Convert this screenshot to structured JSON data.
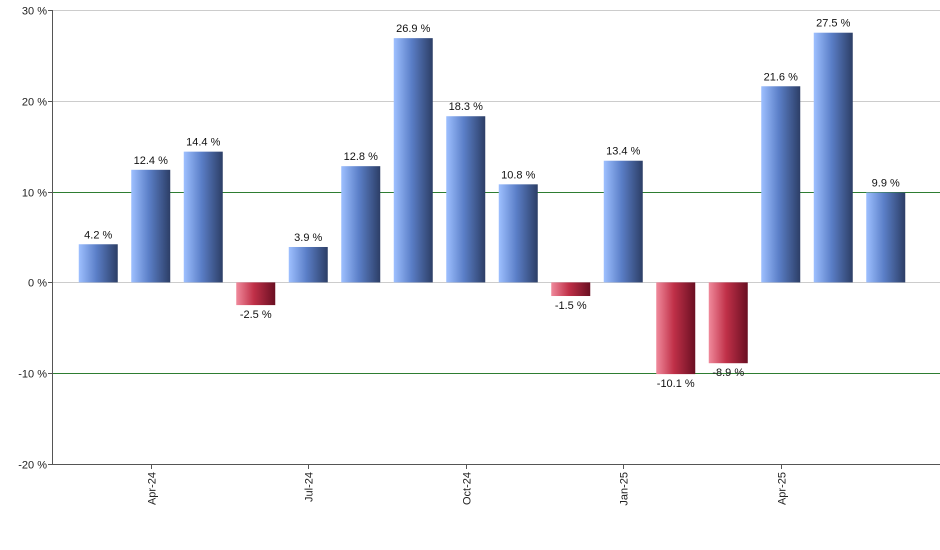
{
  "chart_data": {
    "type": "bar",
    "title": "",
    "xlabel": "",
    "ylabel": "",
    "ylim": [
      -20,
      30
    ],
    "y_ticks": [
      -20,
      -10,
      0,
      10,
      20,
      30
    ],
    "y_tick_labels": [
      "-20 %",
      "-10 %",
      "0 %",
      "10 %",
      "20 %",
      "30 %"
    ],
    "reference_lines": [
      10,
      -10
    ],
    "grid": true,
    "x_tick_labels": [
      "Apr-24",
      "Jul-24",
      "Oct-24",
      "Jan-25",
      "Apr-25"
    ],
    "x_tick_positions": [
      1,
      4,
      7,
      10,
      13
    ],
    "values": [
      4.2,
      12.4,
      14.4,
      -2.5,
      3.9,
      12.8,
      26.9,
      18.3,
      10.8,
      -1.5,
      13.4,
      -10.1,
      -8.9,
      21.6,
      27.5,
      9.9
    ],
    "value_labels": [
      "4.2 %",
      "12.4 %",
      "14.4 %",
      "-2.5 %",
      "3.9 %",
      "12.8 %",
      "26.9 %",
      "18.3 %",
      "10.8 %",
      "-1.5 %",
      "13.4 %",
      "-10.1 %",
      "-8.9 %",
      "21.6 %",
      "27.5 %",
      "9.9 %"
    ],
    "colors": {
      "positive_light": "#9ec0ff",
      "positive_mid": "#5b7fc8",
      "positive_dark": "#2c3e66",
      "negative_light": "#f08a9c",
      "negative_mid": "#c03048",
      "negative_dark": "#6a0f22",
      "grid": "#cccccc",
      "reference": "#2e7d32",
      "axis": "#555555"
    }
  }
}
